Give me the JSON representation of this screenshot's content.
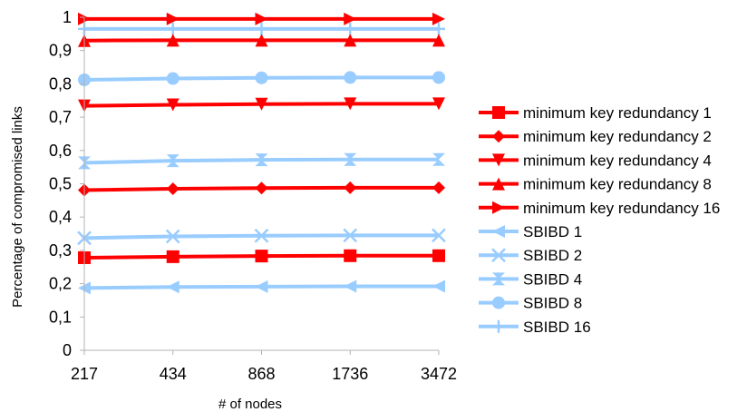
{
  "chart_data": {
    "type": "line",
    "title": "",
    "xlabel": "# of nodes",
    "ylabel": "Percentage of compromised links",
    "categories": [
      "217",
      "434",
      "868",
      "1736",
      "3472"
    ],
    "ylim": [
      0,
      1
    ],
    "yticks": [
      "0",
      "0,1",
      "0,2",
      "0,3",
      "0,4",
      "0,5",
      "0,6",
      "0,7",
      "0,8",
      "0,9",
      "1"
    ],
    "grid": false,
    "legend_position": "right",
    "series": [
      {
        "name": "minimum key redundancy 1",
        "color": "#ff0000",
        "marker": "square",
        "values": [
          0.278,
          0.281,
          0.283,
          0.284,
          0.284
        ]
      },
      {
        "name": "minimum key redundancy 2",
        "color": "#ff0000",
        "marker": "diamond",
        "values": [
          0.481,
          0.485,
          0.487,
          0.488,
          0.488
        ]
      },
      {
        "name": "minimum key redundancy 4",
        "color": "#ff0000",
        "marker": "triangle-down",
        "values": [
          0.734,
          0.737,
          0.739,
          0.74,
          0.74
        ]
      },
      {
        "name": "minimum key redundancy 8",
        "color": "#ff0000",
        "marker": "triangle-up",
        "values": [
          0.93,
          0.931,
          0.931,
          0.931,
          0.931
        ]
      },
      {
        "name": "minimum key redundancy 16",
        "color": "#ff0000",
        "marker": "triangle-right",
        "values": [
          0.995,
          0.995,
          0.995,
          0.995,
          0.995
        ]
      },
      {
        "name": "SBIBD 1",
        "color": "#99ccff",
        "marker": "triangle-left",
        "values": [
          0.187,
          0.19,
          0.191,
          0.192,
          0.192
        ]
      },
      {
        "name": "SBIBD 2",
        "color": "#99ccff",
        "marker": "x",
        "values": [
          0.337,
          0.342,
          0.344,
          0.345,
          0.345
        ]
      },
      {
        "name": "SBIBD 4",
        "color": "#99ccff",
        "marker": "hourglass",
        "values": [
          0.563,
          0.569,
          0.572,
          0.573,
          0.573
        ]
      },
      {
        "name": "SBIBD 8",
        "color": "#99ccff",
        "marker": "circle",
        "values": [
          0.812,
          0.816,
          0.818,
          0.819,
          0.819
        ]
      },
      {
        "name": "SBIBD 16",
        "color": "#99ccff",
        "marker": "plus",
        "values": [
          0.965,
          0.965,
          0.965,
          0.965,
          0.965
        ]
      }
    ]
  }
}
